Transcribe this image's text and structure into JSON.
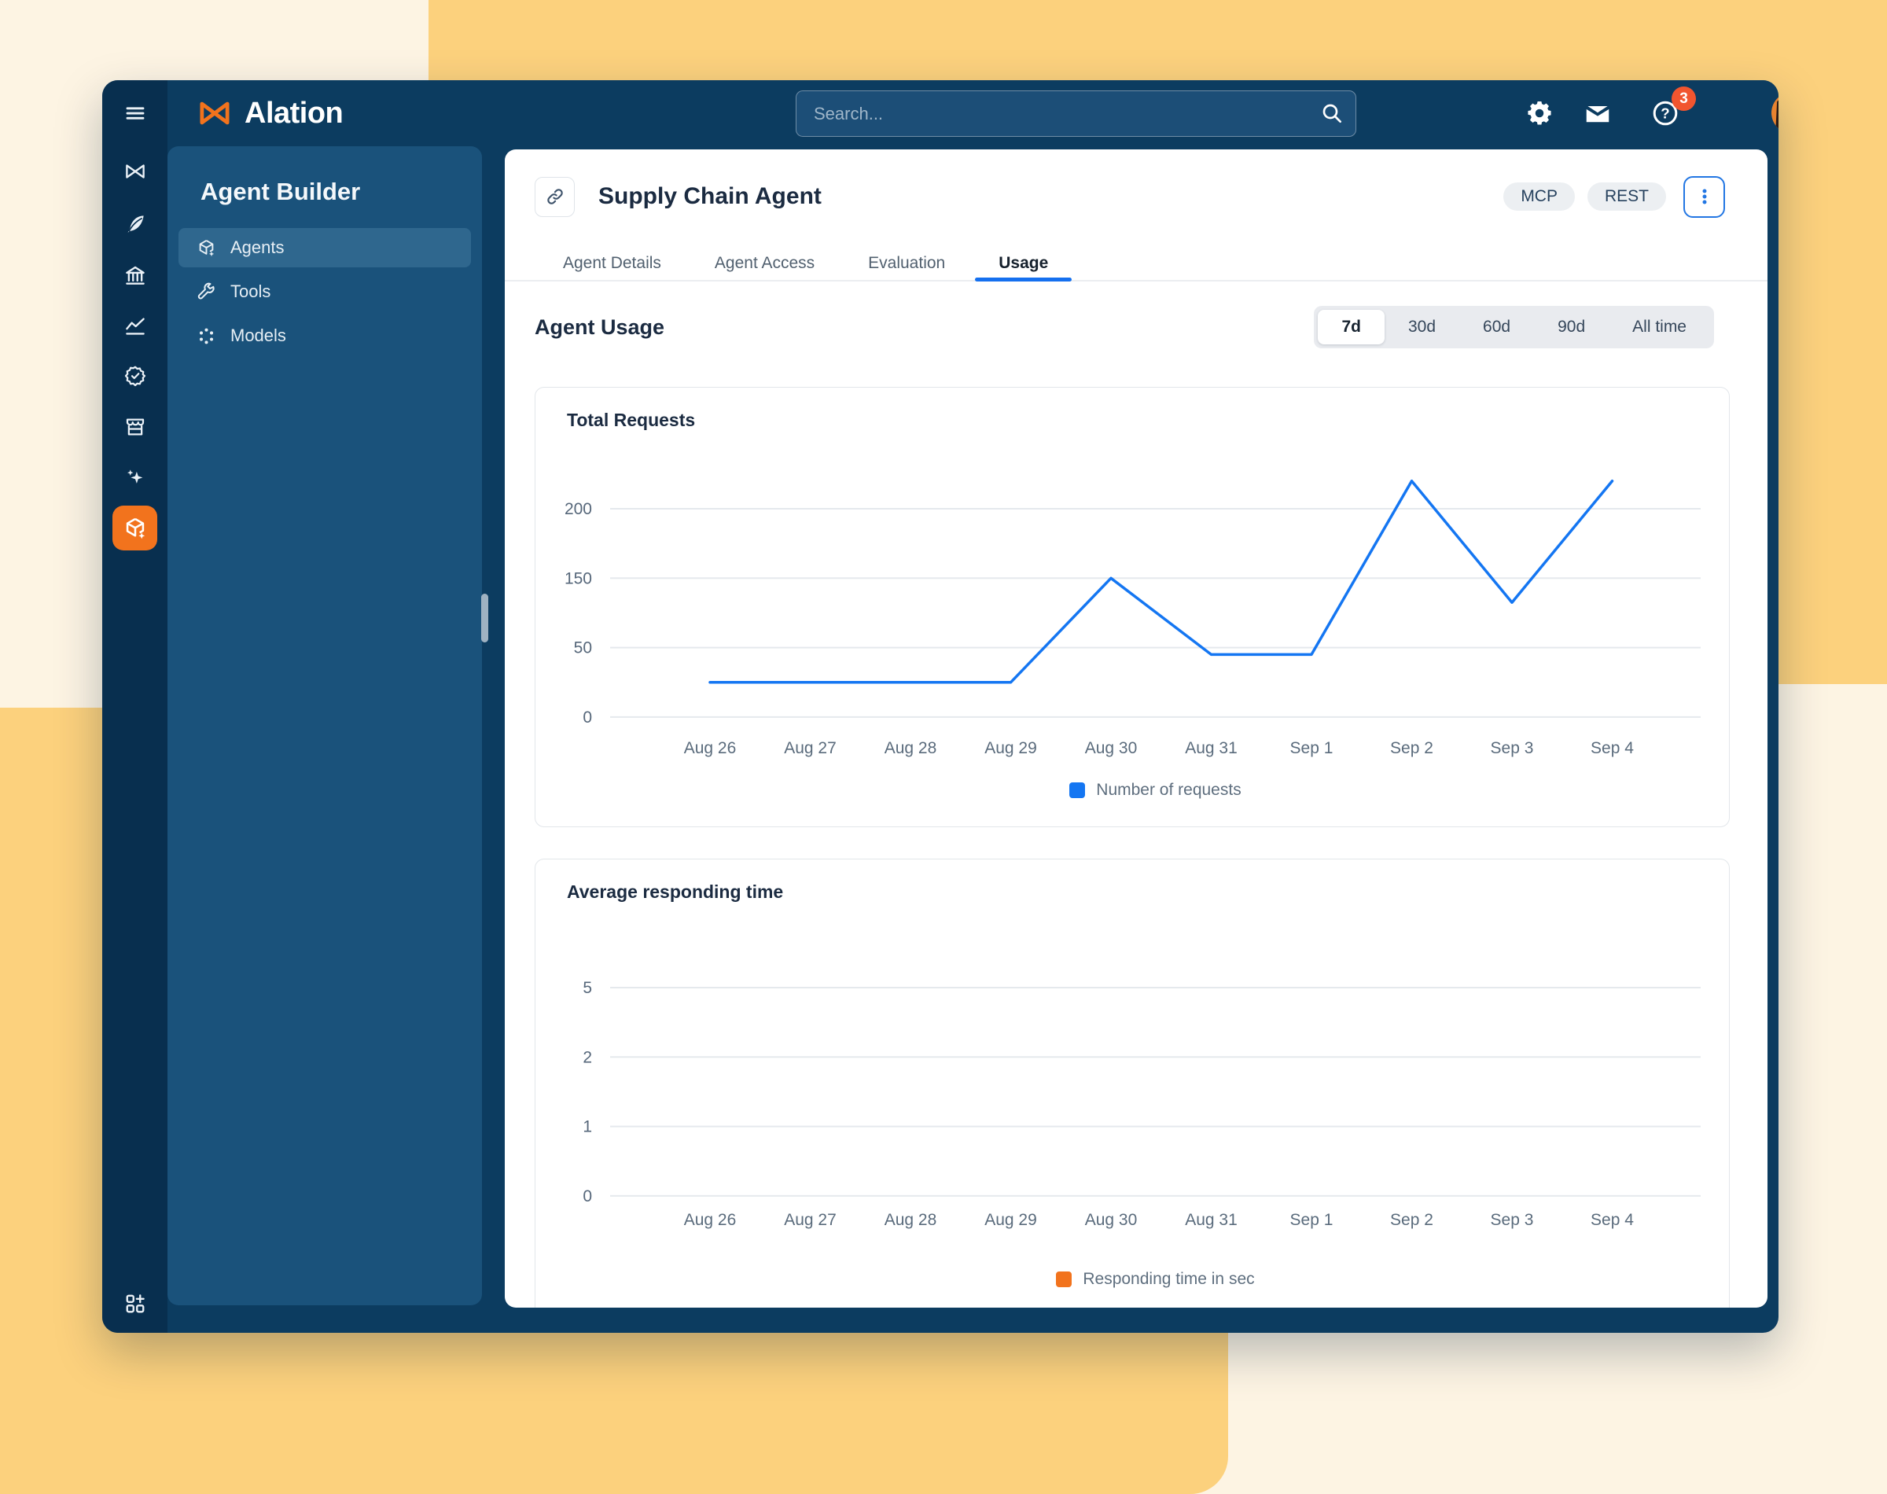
{
  "background": {
    "cream": "#FDF4E3",
    "yellow": "#FCD17D"
  },
  "window": {
    "chrome_color": "#0C3C60",
    "rail_color": "#082F4F"
  },
  "topbar": {
    "logo_text": "Alation",
    "search_placeholder": "Search...",
    "mail_badge": "3"
  },
  "rail": {
    "items": [
      {
        "icon": "menu-icon"
      },
      {
        "icon": "alation-mark-icon"
      },
      {
        "icon": "quill-icon"
      },
      {
        "icon": "bank-icon"
      },
      {
        "icon": "area-chart-icon"
      },
      {
        "icon": "certified-badge-icon"
      },
      {
        "icon": "storefront-icon"
      },
      {
        "icon": "sparkles-icon"
      },
      {
        "icon": "agent-builder-cube-icon",
        "active": true
      },
      {
        "icon": "apps-grid-plus-icon"
      }
    ]
  },
  "sidebar": {
    "title": "Agent Builder",
    "items": [
      {
        "label": "Agents",
        "icon": "cube-plus-icon",
        "selected": true
      },
      {
        "label": "Tools",
        "icon": "wrench-icon",
        "selected": false
      },
      {
        "label": "Models",
        "icon": "model-nodes-icon",
        "selected": false
      }
    ]
  },
  "page": {
    "agent_title": "Supply Chain Agent",
    "badges": [
      {
        "label": "MCP"
      },
      {
        "label": "REST"
      }
    ],
    "tabs": [
      {
        "label": "Agent Details",
        "active": false
      },
      {
        "label": "Agent Access",
        "active": false
      },
      {
        "label": "Evaluation",
        "active": false
      },
      {
        "label": "Usage",
        "active": true
      }
    ],
    "section_title": "Agent Usage",
    "time_ranges": [
      {
        "label": "7d",
        "selected": true
      },
      {
        "label": "30d",
        "selected": false
      },
      {
        "label": "60d",
        "selected": false
      },
      {
        "label": "90d",
        "selected": false
      },
      {
        "label": "All time",
        "selected": false
      }
    ]
  },
  "chart_data": [
    {
      "type": "line",
      "title": "Total Requests",
      "x": [
        "Aug 26",
        "Aug 27",
        "Aug 28",
        "Aug 29",
        "Aug 30",
        "Aug 31",
        "Sep 1",
        "Sep 2",
        "Sep 3",
        "Sep 4"
      ],
      "y_ticks": [
        200,
        150,
        50,
        0
      ],
      "grid": true,
      "legend_position": "bottom",
      "series": [
        {
          "name": "Number of requests",
          "color": "#1476F2",
          "values": [
            25,
            25,
            25,
            25,
            150,
            45,
            45,
            220,
            115,
            220
          ]
        }
      ]
    },
    {
      "type": "line",
      "title": "Average responding time",
      "x": [
        "Aug 26",
        "Aug 27",
        "Aug 28",
        "Aug 29",
        "Aug 30",
        "Aug 31",
        "Sep 1",
        "Sep 2",
        "Sep 3",
        "Sep 4"
      ],
      "y_ticks": [
        5,
        2,
        1,
        0
      ],
      "grid": true,
      "legend_position": "bottom",
      "series": [
        {
          "name": "Responding time in sec",
          "color": "#F2731D",
          "values": []
        }
      ]
    }
  ],
  "colors": {
    "accent_orange": "#F2731D",
    "badge_red": "#F1552F",
    "line_blue": "#1476F2",
    "active_tab_blue": "#1570EF"
  }
}
